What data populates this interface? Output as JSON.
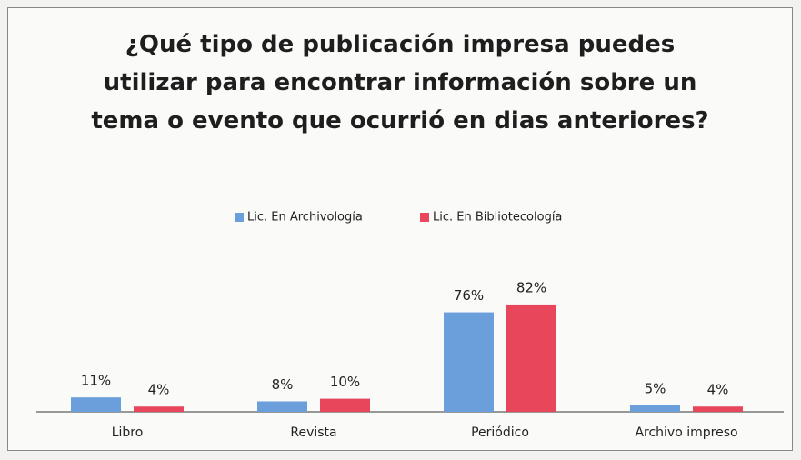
{
  "chart_data": {
    "type": "bar",
    "title": "¿Qué tipo de publicación impresa puedes utilizar para encontrar información sobre un tema o evento que ocurrió en dias anteriores?",
    "categories": [
      "Libro",
      "Revista",
      "Periódico",
      "Archivo impreso"
    ],
    "series": [
      {
        "name": "Lic. En Archivología",
        "color": "#6a9fdc",
        "values": [
          11,
          8,
          76,
          5
        ],
        "value_labels": [
          "11%",
          "8%",
          "76%",
          "5%"
        ]
      },
      {
        "name": "Lic. En Bibliotecología",
        "color": "#e8475b",
        "values": [
          4,
          10,
          82,
          4
        ],
        "value_labels": [
          "4%",
          "10%",
          "82%",
          "4%"
        ]
      }
    ],
    "legend": "top"
  }
}
